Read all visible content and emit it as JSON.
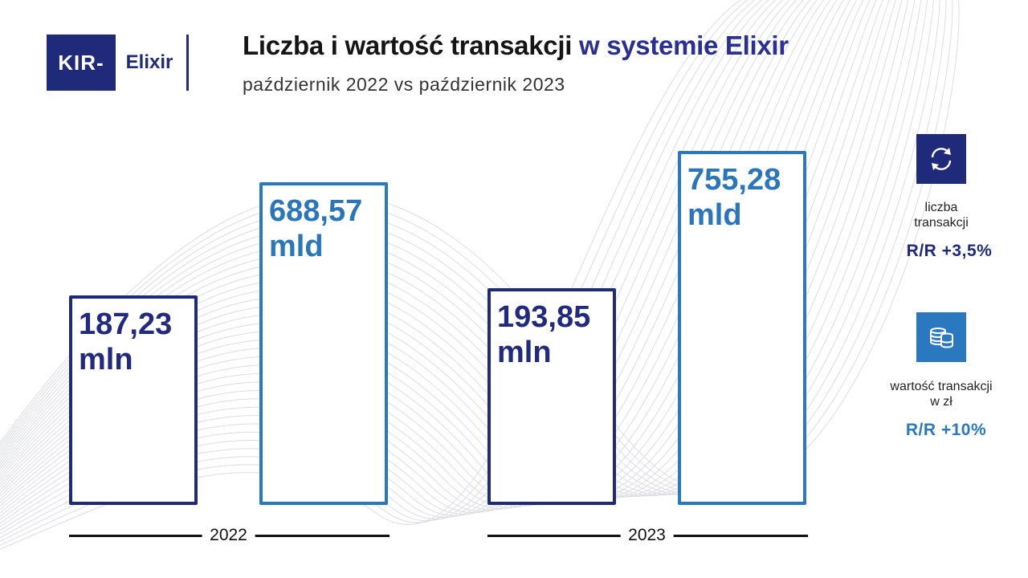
{
  "logo": {
    "kir": "KIR",
    "product": "Elixir"
  },
  "header": {
    "title_main": "Liczba i wartość transakcji",
    "title_accent": "w systemie Elixir",
    "subtitle": "październik 2022 vs październik 2023"
  },
  "colors": {
    "count": "#1f2a7a",
    "value": "#2a78bf",
    "accent": "#2a2f93"
  },
  "chart_data": {
    "type": "bar",
    "categories": [
      "2022",
      "2023"
    ],
    "series": [
      {
        "name": "liczba transakcji",
        "values": [
          187.23,
          193.85
        ],
        "unit": "mln",
        "labels": [
          "187,23",
          "193,85"
        ]
      },
      {
        "name": "wartość transakcji w zł",
        "values": [
          688.57,
          755.28
        ],
        "unit": "mld",
        "labels": [
          "688,57",
          "755,28"
        ]
      }
    ]
  },
  "legend": [
    {
      "icon": "exchange-arrows-icon",
      "text": [
        "liczba",
        "transakcji"
      ],
      "change": "R/R +3,5%"
    },
    {
      "icon": "coins-stack-icon",
      "text": [
        "wartość transakcji",
        "w zł"
      ],
      "change": "R/R +10%"
    }
  ]
}
